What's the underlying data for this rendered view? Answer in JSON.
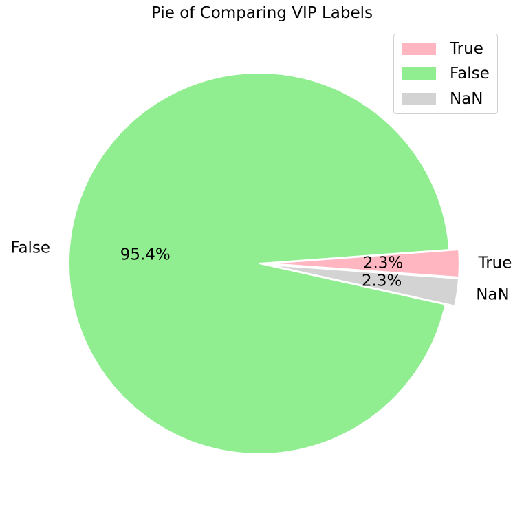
{
  "chart_data": {
    "type": "pie",
    "title": "Pie of Comparing VIP Labels",
    "slices": [
      {
        "label": "True",
        "value": 2.3,
        "pct_label": "2.3%",
        "color": "#ffb6c1",
        "explode": true
      },
      {
        "label": "False",
        "value": 95.4,
        "pct_label": "95.4%",
        "color": "#90ee90",
        "explode": false
      },
      {
        "label": "NaN",
        "value": 2.3,
        "pct_label": "2.3%",
        "color": "#d3d3d3",
        "explode": true
      }
    ],
    "legend": {
      "placement": "top-right",
      "entries": [
        "True",
        "False",
        "NaN"
      ]
    }
  }
}
